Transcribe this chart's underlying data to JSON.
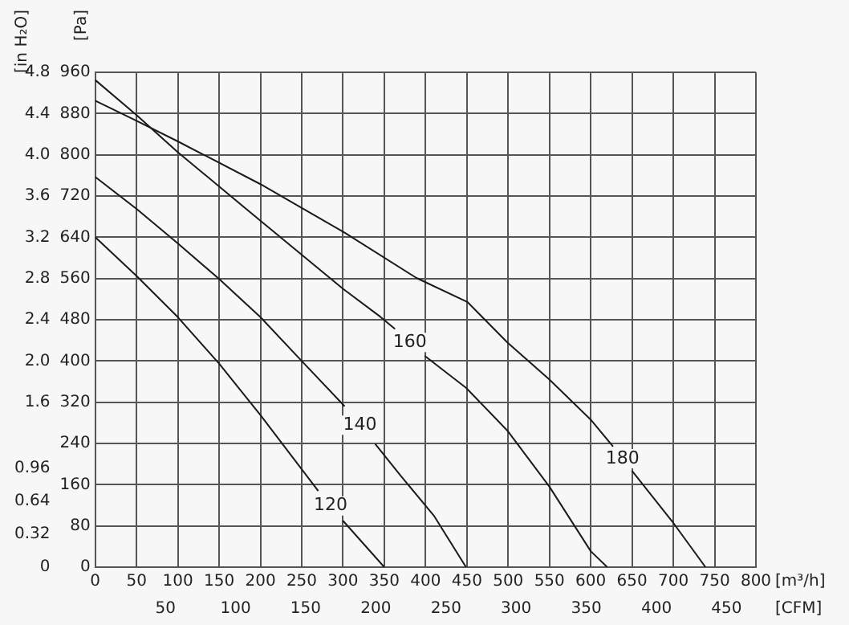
{
  "chart_data": {
    "type": "line",
    "xlabel": "[m³/h]",
    "x2label": "[CFM]",
    "ylabel": "[Pa]",
    "y2label": "[in H₂O]",
    "xlim": [
      0,
      800
    ],
    "xticks": [
      0,
      50,
      100,
      150,
      200,
      250,
      300,
      350,
      400,
      450,
      500,
      550,
      600,
      650,
      700,
      750,
      800
    ],
    "x2lim": [
      0,
      470.9
    ],
    "x2ticks": [
      50,
      100,
      150,
      200,
      250,
      300,
      350,
      400,
      450
    ],
    "ylim": [
      0,
      960
    ],
    "yticks": [
      0,
      80,
      160,
      240,
      320,
      400,
      480,
      560,
      640,
      720,
      800,
      880,
      960
    ],
    "y2lim": [
      0,
      4.8
    ],
    "y2ticks": [
      0,
      0.32,
      0.64,
      0.96,
      1.6,
      {
        "value": 2,
        "label": "2.0"
      },
      2.4,
      2.8,
      3.2,
      3.6,
      {
        "value": 4,
        "label": "4.0"
      },
      4.4,
      4.8
    ],
    "grid": true,
    "legend": false,
    "marker": "none",
    "line_style": "solid",
    "series": [
      {
        "name": "120",
        "color": "#1a1a1a",
        "x": [
          0,
          50,
          100,
          150,
          200,
          250,
          270,
          285,
          300,
          350
        ],
        "values": [
          640,
          565,
          485,
          395,
          295,
          190,
          148,
          null,
          90,
          0
        ]
      },
      {
        "name": "140",
        "color": "#1a1a1a",
        "x": [
          0,
          50,
          100,
          150,
          200,
          250,
          302,
          320,
          339,
          370,
          410,
          449
        ],
        "values": [
          757,
          695,
          628,
          559,
          485,
          400,
          312,
          null,
          239,
          177,
          100,
          0
        ]
      },
      {
        "name": "160",
        "color": "#1a1a1a",
        "x": [
          0,
          50,
          100,
          200,
          300,
          345,
          363,
          380,
          399,
          449,
          499,
          550,
          600,
          620
        ],
        "values": [
          945,
          877,
          805,
          672,
          540,
          486,
          462,
          null,
          410,
          348,
          265,
          156,
          31,
          0
        ]
      },
      {
        "name": "180",
        "color": "#1a1a1a",
        "x": [
          0,
          50,
          100,
          200,
          302,
          389,
          451,
          499,
          550,
          600,
          627,
          640,
          650,
          699,
          739
        ],
        "values": [
          905,
          866,
          826,
          743,
          649,
          561,
          514,
          436,
          364,
          286,
          234,
          null,
          187,
          88,
          0
        ]
      }
    ]
  }
}
